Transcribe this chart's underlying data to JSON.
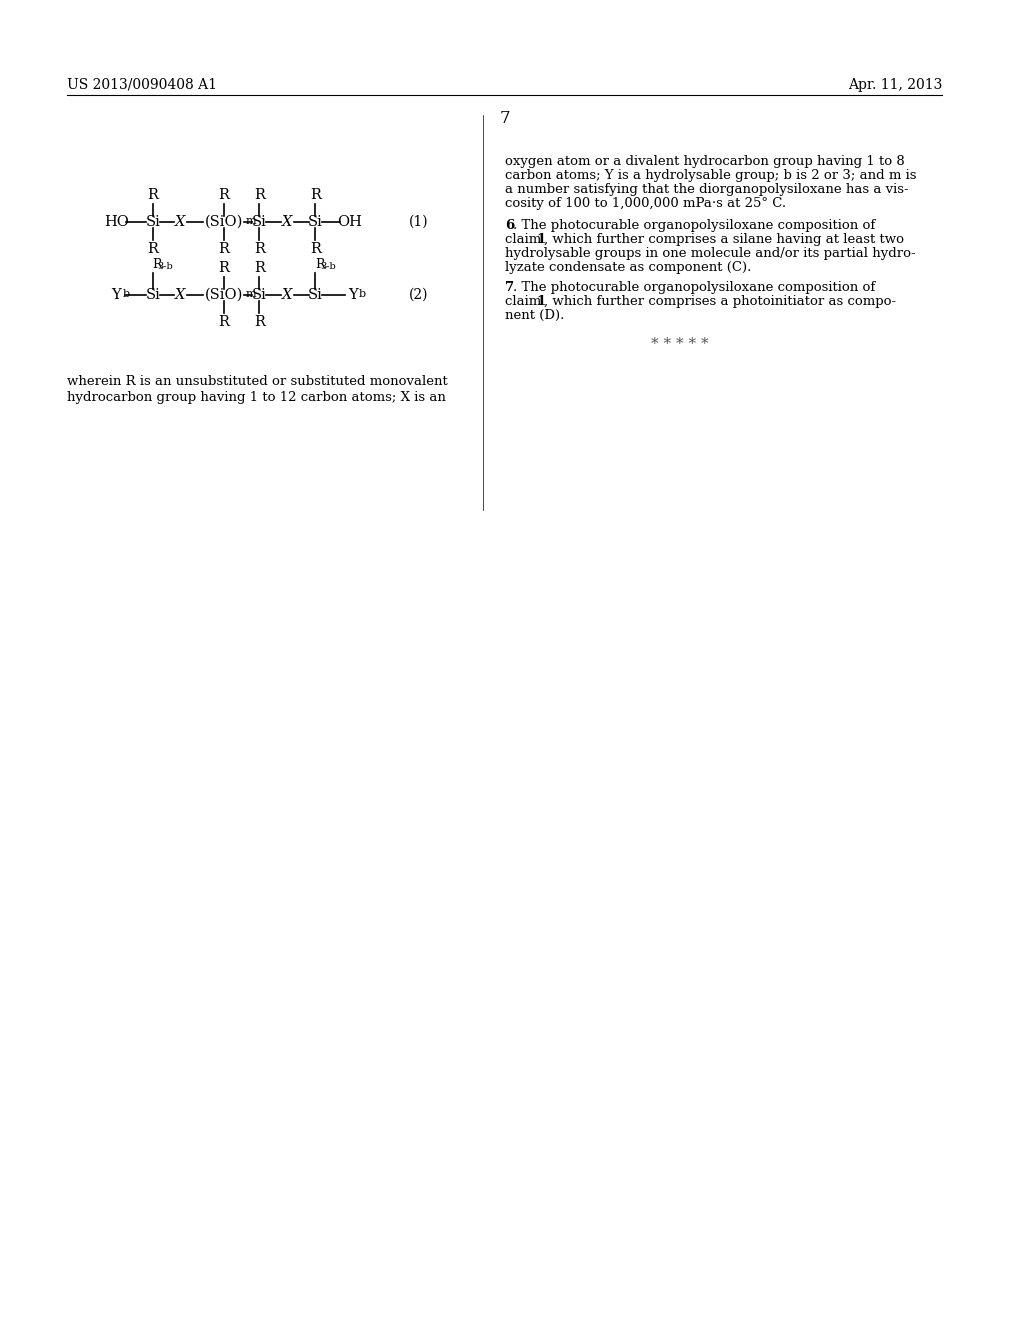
{
  "bg_color": "#ffffff",
  "header_left": "US 2013/0090408 A1",
  "header_right": "Apr. 11, 2013",
  "page_number": "7",
  "label1": "(1)",
  "label2": "(2)",
  "formula1_text": "HO—Si—X—(SiO)ₘ—Si—X—Si—OH",
  "formula2_text": "Yᵇ—Si—X—(SiO)ₘ—Si—X—Si—Yᵇ",
  "wherein_text": "wherein R is an unsubstituted or substituted monovalent\nhydrocarbon group having 1 to 12 carbon atoms; X is an",
  "right_col_text1": "oxygen atom or a divalent hydrocarbon group having 1 to 8\ncarbon atoms; Y is a hydrolysable group; b is 2 or 3; and m is\na number satisfying that the diorganopolysiloxane has a vis-\ncosity of 100 to 1,000,000 mPa·s at 25° C.",
  "right_col_text2_bold": "6",
  "right_col_text2": ". The photocurable organopolysiloxane composition of\nclaim ",
  "right_col_text2b_bold": "1",
  "right_col_text2c": ", which further comprises a silane having at least two\nhydrolysable groups in one molecule and/or its partial hydro-\nlyzate condensate as component (C).",
  "right_col_text3_bold": "7",
  "right_col_text3": ". The photocurable organopolysiloxane composition of\nclaim ",
  "right_col_text3b_bold": "1",
  "right_col_text3c": ", which further comprises a photoinitiator as compo-\nnent (D).",
  "stars": "* * * * *"
}
